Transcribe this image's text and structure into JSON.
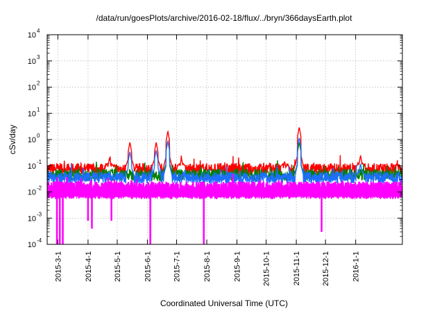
{
  "chart_data": {
    "type": "line",
    "title": "/data/run/goesPlots/archive/2016-02-18/flux/../bryn/366daysEarth.plot",
    "xlabel": "Coordinated Universal Time (UTC)",
    "ylabel": "cSv/day",
    "y_scale": "log",
    "ylim": [
      0.0001,
      10000
    ],
    "xlim": [
      "2015-02-18",
      "2016-02-18"
    ],
    "y_ticks": [
      {
        "base": "10",
        "exp": "-4",
        "value": 0.0001
      },
      {
        "base": "10",
        "exp": "-3",
        "value": 0.001
      },
      {
        "base": "10",
        "exp": "-2",
        "value": 0.01
      },
      {
        "base": "10",
        "exp": "-1",
        "value": 0.1
      },
      {
        "base": "10",
        "exp": "0",
        "value": 1
      },
      {
        "base": "10",
        "exp": "1",
        "value": 10
      },
      {
        "base": "10",
        "exp": "2",
        "value": 100
      },
      {
        "base": "10",
        "exp": "3",
        "value": 1000
      },
      {
        "base": "10",
        "exp": "4",
        "value": 10000
      }
    ],
    "x_ticks": [
      {
        "label": "2015-3-1",
        "date": "2015-03-01"
      },
      {
        "label": "2015-4-1",
        "date": "2015-04-01"
      },
      {
        "label": "2015-5-1",
        "date": "2015-05-01"
      },
      {
        "label": "2015-6-1",
        "date": "2015-06-01"
      },
      {
        "label": "2015-7-1",
        "date": "2015-07-01"
      },
      {
        "label": "2015-8-1",
        "date": "2015-08-01"
      },
      {
        "label": "2015-9-1",
        "date": "2015-09-01"
      },
      {
        "label": "2015-10-1",
        "date": "2015-10-01"
      },
      {
        "label": "2015-11-1",
        "date": "2015-11-01"
      },
      {
        "label": "2015-12-1",
        "date": "2015-12-01"
      },
      {
        "label": "2016-1-1",
        "date": "2016-01-01"
      }
    ],
    "grid": true,
    "series": [
      {
        "color": "#ff0000",
        "baseline": 0.075,
        "spikes": [
          {
            "date": "2015-04-23",
            "value": 0.2
          },
          {
            "date": "2015-05-14",
            "value": 0.8
          },
          {
            "date": "2015-06-10",
            "value": 0.8
          },
          {
            "date": "2015-06-22",
            "value": 2.1
          },
          {
            "date": "2015-07-06",
            "value": 0.2
          },
          {
            "date": "2015-10-20",
            "value": 0.15
          },
          {
            "date": "2015-11-04",
            "value": 3.0
          },
          {
            "date": "2016-01-06",
            "value": 0.25
          }
        ]
      },
      {
        "color": "#008000",
        "baseline": 0.045,
        "spikes": [
          {
            "date": "2015-06-22",
            "value": 0.9
          },
          {
            "date": "2015-11-04",
            "value": 0.8
          }
        ]
      },
      {
        "color": "#1e6fff",
        "baseline": 0.035,
        "spikes": [
          {
            "date": "2015-05-14",
            "value": 0.35
          },
          {
            "date": "2015-06-10",
            "value": 0.4
          },
          {
            "date": "2015-06-22",
            "value": 0.9
          },
          {
            "date": "2015-11-04",
            "value": 1.2
          },
          {
            "date": "2016-01-06",
            "value": 0.12
          }
        ]
      },
      {
        "color": "#ff00ff",
        "baseline": 0.015,
        "dips": [
          {
            "date": "2015-02-28",
            "value": 0.0001
          },
          {
            "date": "2015-03-03",
            "value": 0.0001
          },
          {
            "date": "2015-03-06",
            "value": 0.0001
          },
          {
            "date": "2015-04-01",
            "value": 0.0008
          },
          {
            "date": "2015-04-05",
            "value": 0.0004
          },
          {
            "date": "2015-04-25",
            "value": 0.0008
          },
          {
            "date": "2015-06-04",
            "value": 0.0001
          },
          {
            "date": "2015-07-29",
            "value": 0.0001
          },
          {
            "date": "2015-11-27",
            "value": 0.0003
          }
        ]
      }
    ]
  }
}
